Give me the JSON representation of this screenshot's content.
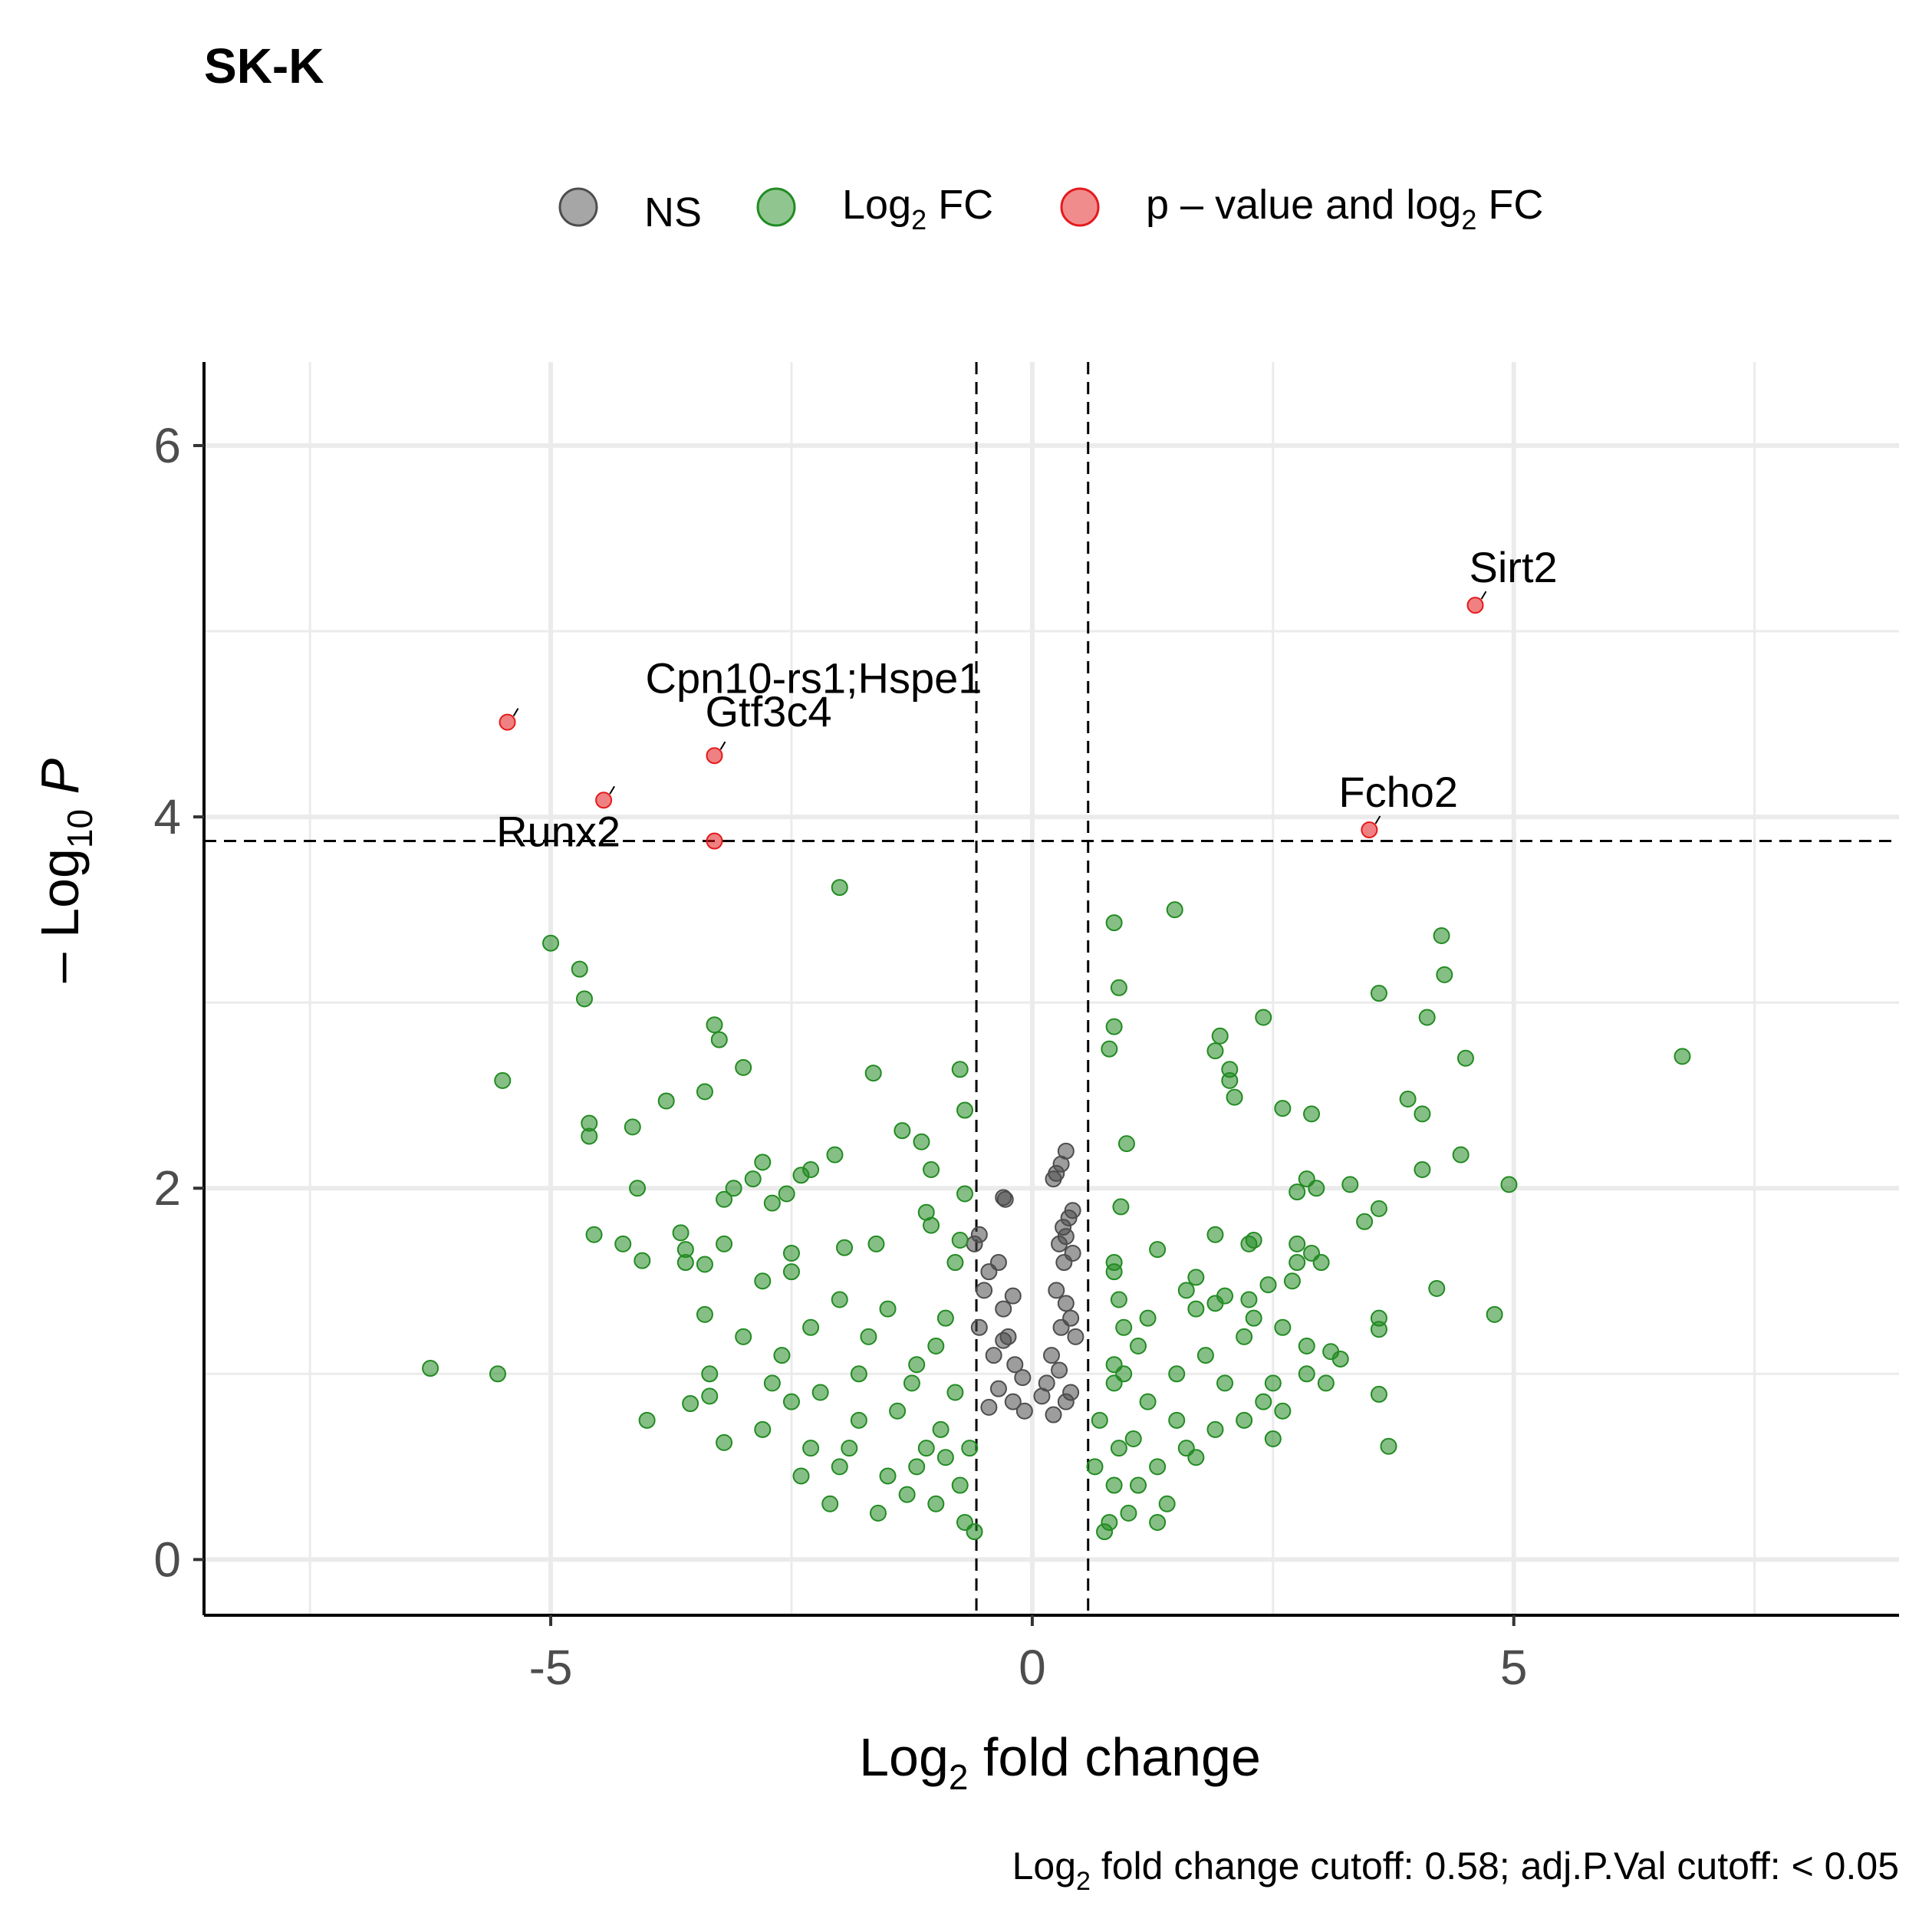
{
  "chart_data": {
    "type": "scatter",
    "title": "SK-K",
    "xlabel": "Log2 fold change",
    "ylabel": "-Log10 P",
    "caption": "Log2 fold change cutoff: 0.58; adj.P.Val cutoff: < 0.05",
    "xlim": [
      -8.6,
      9.0
    ],
    "ylim": [
      -0.3,
      6.45
    ],
    "x_ticks": [
      -5,
      0,
      5
    ],
    "y_ticks": [
      0,
      2,
      4,
      6
    ],
    "grid": true,
    "legend_position": "top",
    "cutoffs": {
      "fc_low": -0.58,
      "fc_high": 0.58,
      "p_line": 3.87
    },
    "series": [
      {
        "name": "NS",
        "color": "#4d4d4d",
        "points": [
          [
            -0.3,
            1.95
          ],
          [
            -0.28,
            1.94
          ],
          [
            0.35,
            2.2
          ],
          [
            0.3,
            2.13
          ],
          [
            0.25,
            2.08
          ],
          [
            0.22,
            2.05
          ],
          [
            0.42,
            1.88
          ],
          [
            0.38,
            1.84
          ],
          [
            0.32,
            1.79
          ],
          [
            0.35,
            1.74
          ],
          [
            0.28,
            1.7
          ],
          [
            0.42,
            1.65
          ],
          [
            0.33,
            1.6
          ],
          [
            -0.55,
            1.75
          ],
          [
            -0.6,
            1.7
          ],
          [
            -0.45,
            1.55
          ],
          [
            -0.35,
            1.6
          ],
          [
            -0.5,
            1.45
          ],
          [
            -0.2,
            1.42
          ],
          [
            -0.3,
            1.35
          ],
          [
            0.25,
            1.45
          ],
          [
            0.35,
            1.38
          ],
          [
            0.4,
            1.3
          ],
          [
            0.3,
            1.25
          ],
          [
            -0.55,
            1.25
          ],
          [
            -0.25,
            1.2
          ],
          [
            -0.3,
            1.18
          ],
          [
            0.45,
            1.2
          ],
          [
            0.2,
            1.1
          ],
          [
            0.28,
            1.02
          ],
          [
            -0.4,
            1.1
          ],
          [
            -0.18,
            1.05
          ],
          [
            0.15,
            0.95
          ],
          [
            -0.1,
            0.98
          ],
          [
            -0.35,
            0.92
          ],
          [
            0.4,
            0.9
          ],
          [
            0.35,
            0.85
          ],
          [
            -0.2,
            0.85
          ],
          [
            -0.45,
            0.82
          ],
          [
            0.1,
            0.88
          ],
          [
            -0.08,
            0.8
          ],
          [
            0.22,
            0.78
          ]
        ]
      },
      {
        "name": "Log2 FC",
        "color": "#228b22",
        "points": [
          [
            -2.0,
            3.62
          ],
          [
            -5.0,
            3.32
          ],
          [
            -4.7,
            3.18
          ],
          [
            -4.65,
            3.02
          ],
          [
            -3.3,
            2.88
          ],
          [
            -3.25,
            2.8
          ],
          [
            -3.0,
            2.65
          ],
          [
            -5.5,
            2.58
          ],
          [
            -3.4,
            2.52
          ],
          [
            -3.8,
            2.47
          ],
          [
            -4.6,
            2.35
          ],
          [
            -4.6,
            2.28
          ],
          [
            -4.15,
            2.33
          ],
          [
            -1.65,
            2.62
          ],
          [
            -0.75,
            2.64
          ],
          [
            -0.7,
            2.42
          ],
          [
            -1.35,
            2.31
          ],
          [
            -1.15,
            2.25
          ],
          [
            -2.05,
            2.18
          ],
          [
            -2.3,
            2.1
          ],
          [
            -2.8,
            2.14
          ],
          [
            -2.4,
            2.07
          ],
          [
            -2.9,
            2.05
          ],
          [
            -3.1,
            2.0
          ],
          [
            -3.2,
            1.94
          ],
          [
            -2.7,
            1.92
          ],
          [
            -2.55,
            1.97
          ],
          [
            -4.1,
            2.0
          ],
          [
            -1.05,
            2.1
          ],
          [
            -0.7,
            1.97
          ],
          [
            -1.1,
            1.87
          ],
          [
            -1.05,
            1.8
          ],
          [
            -3.65,
            1.76
          ],
          [
            -4.55,
            1.75
          ],
          [
            -4.25,
            1.7
          ],
          [
            -4.05,
            1.61
          ],
          [
            -3.6,
            1.67
          ],
          [
            -3.4,
            1.59
          ],
          [
            -3.6,
            1.6
          ],
          [
            -3.2,
            1.7
          ],
          [
            -2.5,
            1.65
          ],
          [
            -1.95,
            1.68
          ],
          [
            -1.62,
            1.7
          ],
          [
            -0.75,
            1.72
          ],
          [
            -3.4,
            1.32
          ],
          [
            -2.8,
            1.5
          ],
          [
            -2.5,
            1.55
          ],
          [
            -6.25,
            1.03
          ],
          [
            -5.55,
            1.0
          ],
          [
            -3.35,
            1.0
          ],
          [
            -3.35,
            0.88
          ],
          [
            -3.55,
            0.84
          ],
          [
            -4.0,
            0.75
          ],
          [
            -3.2,
            0.63
          ],
          [
            -2.8,
            0.7
          ],
          [
            -2.4,
            0.45
          ],
          [
            -2.0,
            0.5
          ],
          [
            -1.5,
            0.45
          ],
          [
            -1.0,
            0.3
          ],
          [
            -0.9,
            0.55
          ],
          [
            -1.8,
            0.75
          ],
          [
            -2.2,
            0.9
          ],
          [
            -2.6,
            1.1
          ],
          [
            -1.7,
            1.2
          ],
          [
            -1.2,
            1.05
          ],
          [
            -0.8,
            0.9
          ],
          [
            -1.4,
            0.8
          ],
          [
            -1.9,
            0.6
          ],
          [
            -1.1,
            0.6
          ],
          [
            -0.75,
            0.4
          ],
          [
            -1.3,
            0.35
          ],
          [
            -0.7,
            0.2
          ],
          [
            -1.6,
            0.25
          ],
          [
            -2.1,
            0.3
          ],
          [
            -0.9,
            1.3
          ],
          [
            -1.5,
            1.35
          ],
          [
            -2.0,
            1.4
          ],
          [
            -2.3,
            1.25
          ],
          [
            -1.8,
            1.0
          ],
          [
            -1.0,
            1.15
          ],
          [
            -0.8,
            1.6
          ],
          [
            -2.7,
            0.95
          ],
          [
            -3.0,
            1.2
          ],
          [
            -2.5,
            0.85
          ],
          [
            -1.25,
            0.95
          ],
          [
            -0.95,
            0.7
          ],
          [
            -0.65,
            0.6
          ],
          [
            -0.6,
            0.15
          ],
          [
            -1.2,
            0.5
          ],
          [
            -2.3,
            0.6
          ],
          [
            1.48,
            3.5
          ],
          [
            0.85,
            3.43
          ],
          [
            0.9,
            3.08
          ],
          [
            0.85,
            2.87
          ],
          [
            0.8,
            2.75
          ],
          [
            0.98,
            2.24
          ],
          [
            0.92,
            1.9
          ],
          [
            0.85,
            1.6
          ],
          [
            0.85,
            1.55
          ],
          [
            0.9,
            1.4
          ],
          [
            0.95,
            1.25
          ],
          [
            0.85,
            1.05
          ],
          [
            0.85,
            0.95
          ],
          [
            0.9,
            0.6
          ],
          [
            0.85,
            0.4
          ],
          [
            0.8,
            0.2
          ],
          [
            4.25,
            3.36
          ],
          [
            4.28,
            3.15
          ],
          [
            3.6,
            3.05
          ],
          [
            4.1,
            2.92
          ],
          [
            2.4,
            2.92
          ],
          [
            1.95,
            2.82
          ],
          [
            1.9,
            2.74
          ],
          [
            2.05,
            2.64
          ],
          [
            2.05,
            2.58
          ],
          [
            2.1,
            2.49
          ],
          [
            2.6,
            2.43
          ],
          [
            2.9,
            2.4
          ],
          [
            3.9,
            2.48
          ],
          [
            4.05,
            2.4
          ],
          [
            4.5,
            2.7
          ],
          [
            6.75,
            2.71
          ],
          [
            4.45,
            2.18
          ],
          [
            4.95,
            2.02
          ],
          [
            4.05,
            2.1
          ],
          [
            3.3,
            2.02
          ],
          [
            2.85,
            2.05
          ],
          [
            2.75,
            1.98
          ],
          [
            2.95,
            2.0
          ],
          [
            3.6,
            1.89
          ],
          [
            3.45,
            1.82
          ],
          [
            2.3,
            1.72
          ],
          [
            2.25,
            1.7
          ],
          [
            1.9,
            1.75
          ],
          [
            2.75,
            1.7
          ],
          [
            2.9,
            1.65
          ],
          [
            3.0,
            1.6
          ],
          [
            2.75,
            1.6
          ],
          [
            1.3,
            1.67
          ],
          [
            1.7,
            1.52
          ],
          [
            1.6,
            1.45
          ],
          [
            2.0,
            1.42
          ],
          [
            2.25,
            1.4
          ],
          [
            2.45,
            1.48
          ],
          [
            2.7,
            1.5
          ],
          [
            4.2,
            1.46
          ],
          [
            3.6,
            1.3
          ],
          [
            3.6,
            1.24
          ],
          [
            4.8,
            1.32
          ],
          [
            1.7,
            1.35
          ],
          [
            1.9,
            1.38
          ],
          [
            2.3,
            1.3
          ],
          [
            2.6,
            1.25
          ],
          [
            2.85,
            1.15
          ],
          [
            3.1,
            1.12
          ],
          [
            3.2,
            1.08
          ],
          [
            2.85,
            1.0
          ],
          [
            3.05,
            0.95
          ],
          [
            3.6,
            0.89
          ],
          [
            3.7,
            0.61
          ],
          [
            2.5,
            0.95
          ],
          [
            2.4,
            0.85
          ],
          [
            2.2,
            0.75
          ],
          [
            2.5,
            0.65
          ],
          [
            1.9,
            0.7
          ],
          [
            1.6,
            0.6
          ],
          [
            1.3,
            0.5
          ],
          [
            1.1,
            0.4
          ],
          [
            1.4,
            0.3
          ],
          [
            1.0,
            0.25
          ],
          [
            1.2,
            0.85
          ],
          [
            1.5,
            1.0
          ],
          [
            1.8,
            1.1
          ],
          [
            1.1,
            1.15
          ],
          [
            0.7,
            0.75
          ],
          [
            0.65,
            0.5
          ],
          [
            0.75,
            0.15
          ],
          [
            1.3,
            0.2
          ],
          [
            2.0,
            0.95
          ],
          [
            2.2,
            1.2
          ],
          [
            1.7,
            0.55
          ],
          [
            1.05,
            0.65
          ],
          [
            1.5,
            0.75
          ],
          [
            2.6,
            0.8
          ],
          [
            1.2,
            1.3
          ],
          [
            0.95,
            1.0
          ]
        ]
      },
      {
        "name": "p - value and log2 FC",
        "color": "#e41a1c",
        "points": [
          [
            -5.45,
            4.51
          ],
          [
            -4.45,
            4.09
          ],
          [
            -3.3,
            4.33
          ],
          [
            -3.3,
            3.87
          ],
          [
            4.6,
            5.14
          ],
          [
            3.5,
            3.93
          ]
        ]
      }
    ],
    "annotations": [
      {
        "text": "Sirt2",
        "x": 4.6,
        "y": 5.14
      },
      {
        "text": "Cpn10-rs1;Hspe1",
        "x": -5.45,
        "y": 4.51
      },
      {
        "text": "Gtf3c4",
        "x": -3.3,
        "y": 4.33
      },
      {
        "text": "Runx2",
        "x": -4.45,
        "y": 4.09
      },
      {
        "text": "Fcho2",
        "x": 3.5,
        "y": 3.93
      }
    ]
  }
}
